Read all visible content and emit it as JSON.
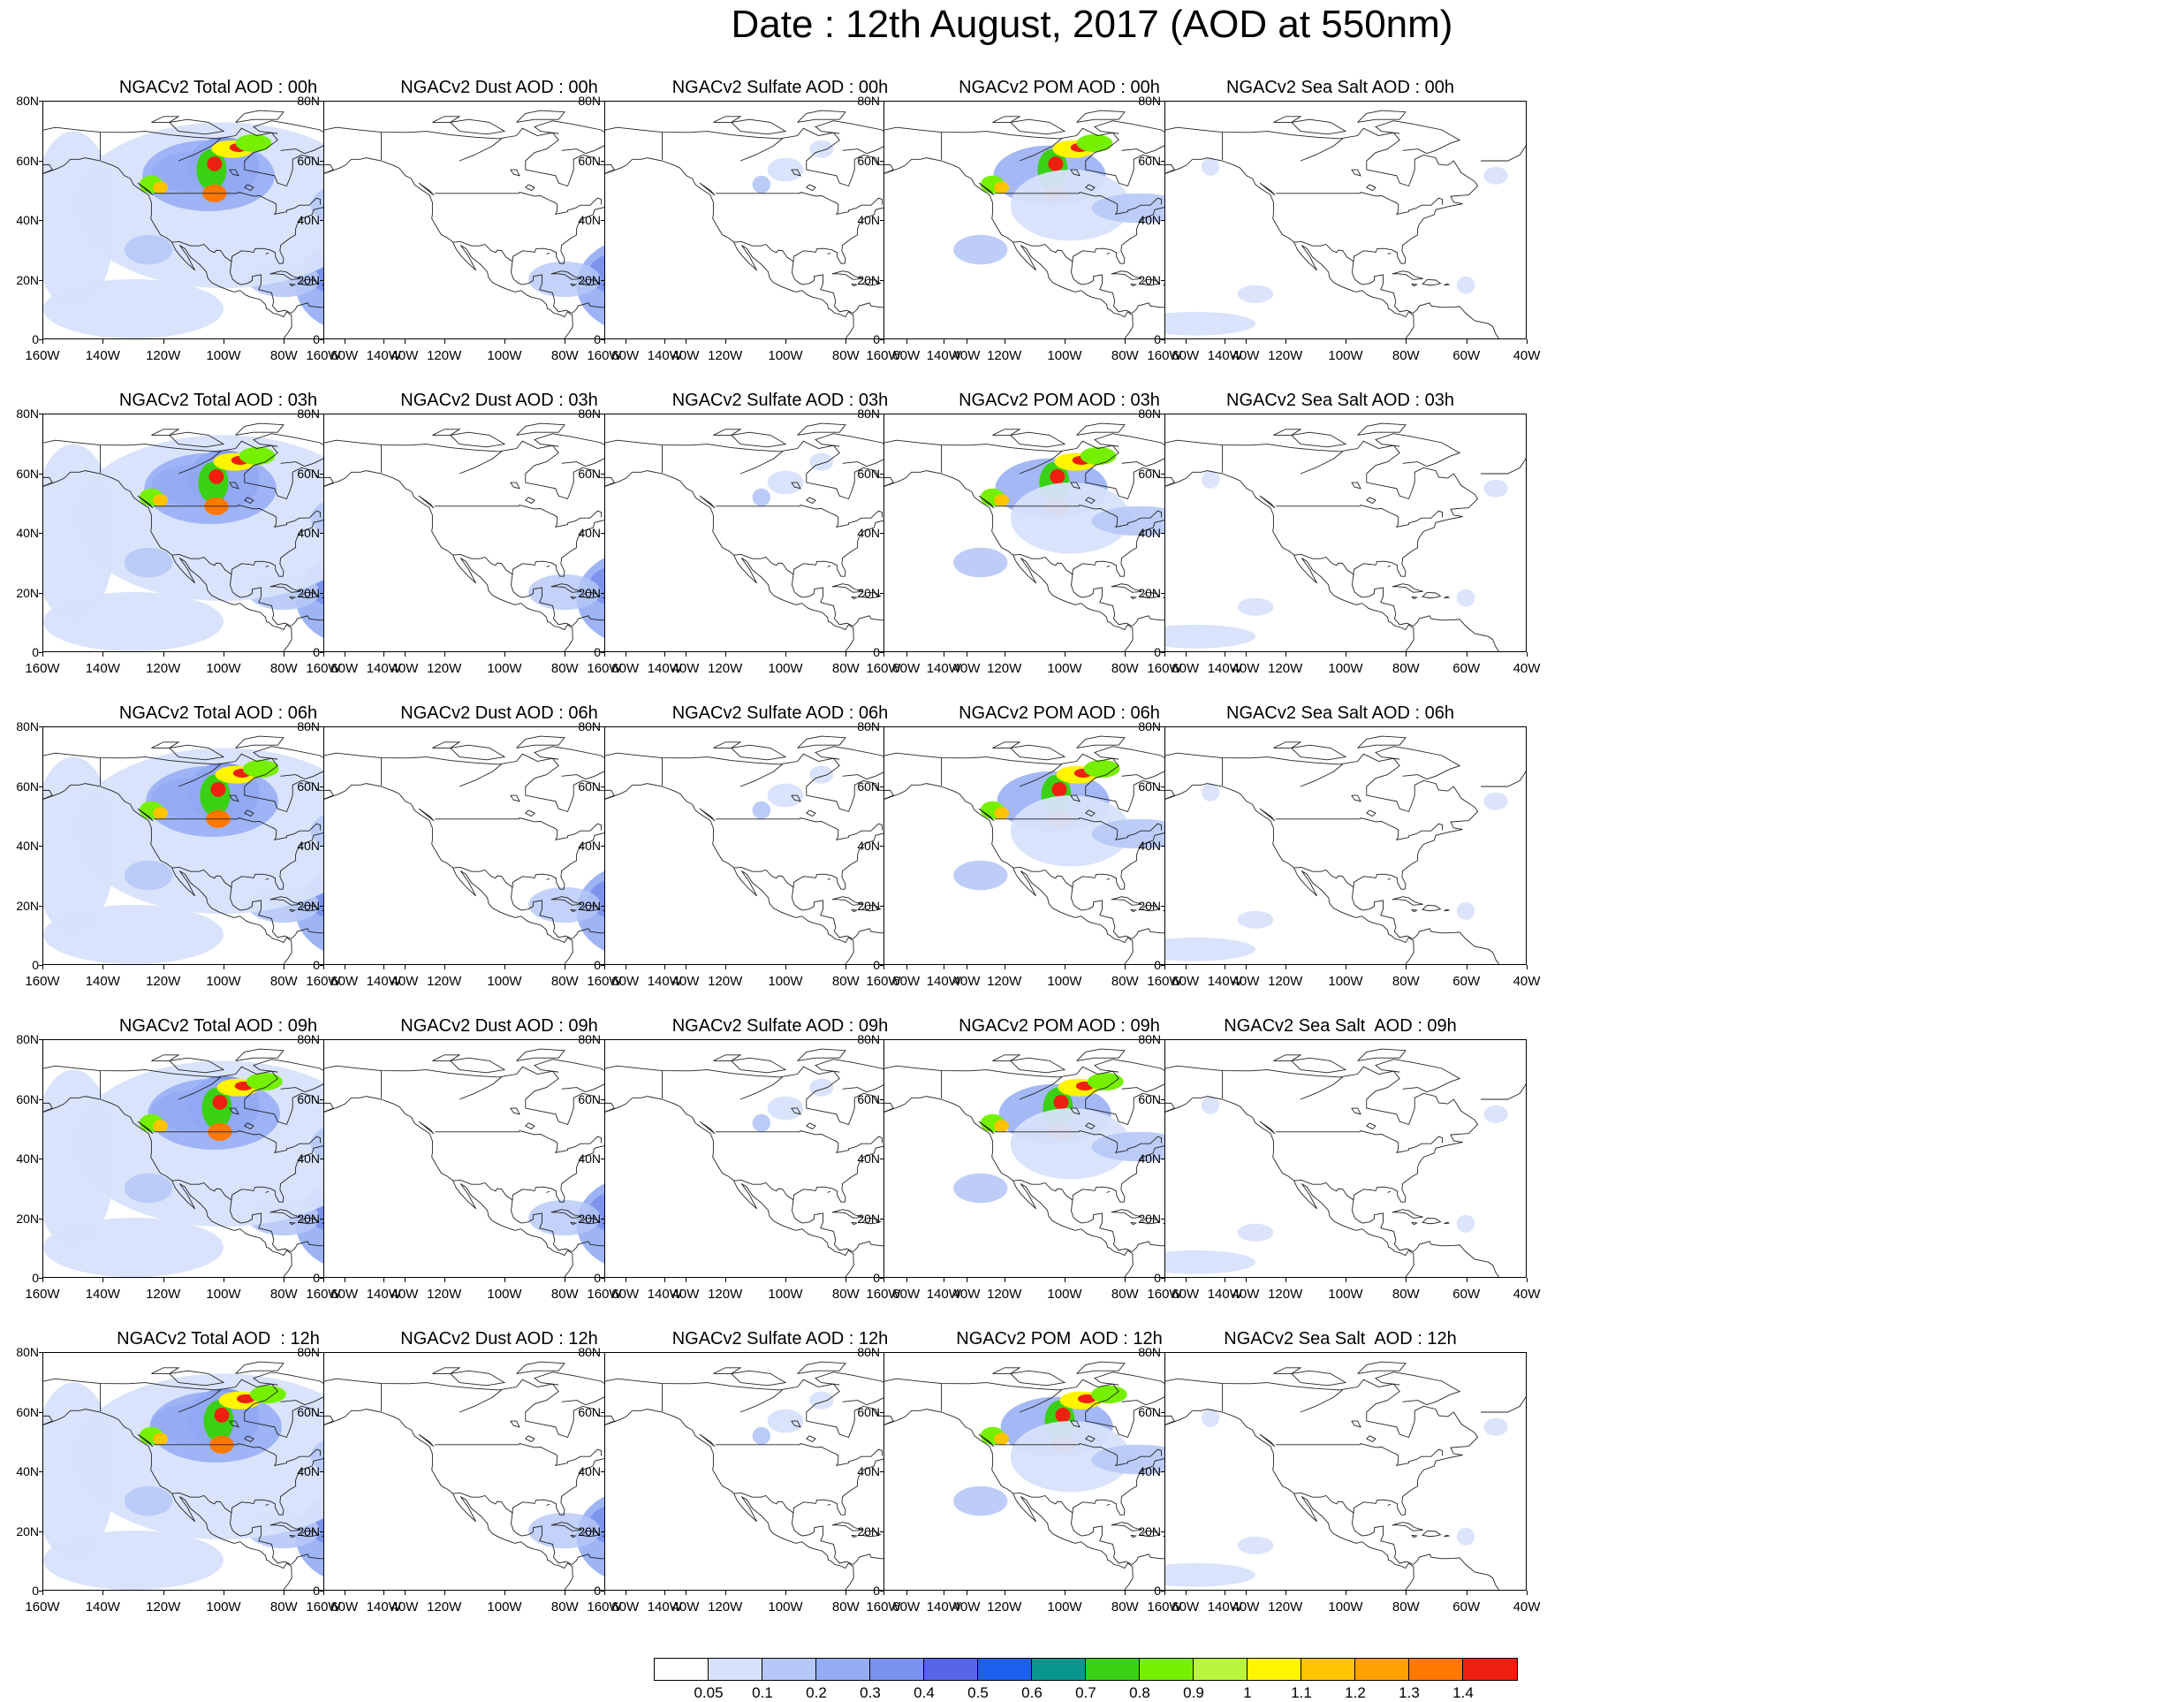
{
  "title": "Date : 12th August, 2017 (AOD at 550nm)",
  "x_ticks": [
    "160W",
    "140W",
    "120W",
    "100W",
    "80W",
    "60W",
    "40W"
  ],
  "y_ticks": [
    "80N",
    "60N",
    "40N",
    "20N",
    "0"
  ],
  "rows": [
    [
      "NGACv2 Total AOD : 00h",
      "NGACv2 Dust AOD : 00h",
      "NGACv2 Sulfate AOD : 00h",
      "NGACv2 POM AOD : 00h",
      "NGACv2 Sea Salt AOD : 00h"
    ],
    [
      "NGACv2 Total AOD : 03h",
      "NGACv2 Dust AOD : 03h",
      "NGACv2 Sulfate AOD : 03h",
      "NGACv2 POM AOD : 03h",
      "NGACv2 Sea Salt AOD : 03h"
    ],
    [
      "NGACv2 Total AOD : 06h",
      "NGACv2 Dust AOD : 06h",
      "NGACv2 Sulfate AOD : 06h",
      "NGACv2 POM AOD : 06h",
      "NGACv2 Sea Salt AOD : 06h"
    ],
    [
      "NGACv2 Total AOD : 09h",
      "NGACv2 Dust AOD : 09h",
      "NGACv2 Sulfate AOD : 09h",
      "NGACv2 POM AOD : 09h",
      "NGACv2 Sea Salt  AOD : 09h"
    ],
    [
      "NGACv2 Total AOD  : 12h",
      "NGACv2 Dust AOD : 12h",
      "NGACv2 Sulfate AOD : 12h",
      "NGACv2 POM  AOD : 12h",
      "NGACv2 Sea Salt  AOD : 12h"
    ]
  ],
  "colorbar": {
    "labels": [
      "0.05",
      "0.1",
      "0.2",
      "0.3",
      "0.4",
      "0.5",
      "0.6",
      "0.7",
      "0.8",
      "0.9",
      "1",
      "1.1",
      "1.2",
      "1.3",
      "1.4"
    ],
    "colors": [
      "#ffffff",
      "#d7e1fb",
      "#b6c8f7",
      "#94acf4",
      "#7b92ee",
      "#5865e6",
      "#1e5ff0",
      "#0a9690",
      "#3ad014",
      "#74f000",
      "#baf53c",
      "#fff500",
      "#ffc400",
      "#ffa000",
      "#ff7800",
      "#f02010"
    ]
  }
}
